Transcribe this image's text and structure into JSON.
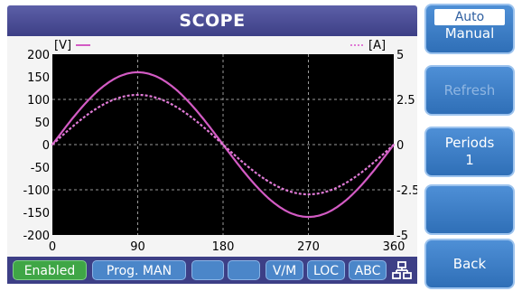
{
  "header": {
    "title": "SCOPE"
  },
  "plot": {
    "left_unit": "[V]",
    "right_unit": "[A]",
    "left_ticks": [
      "200",
      "150",
      "100",
      "50",
      "0",
      "-50",
      "-100",
      "-150",
      "-200"
    ],
    "right_ticks": [
      "5",
      "2.5",
      "0",
      "-2.5",
      "-5"
    ],
    "x_ticks": [
      "0",
      "90",
      "180",
      "270",
      "360"
    ]
  },
  "chart_data": {
    "type": "line",
    "x_unit": "deg",
    "xlim": [
      0,
      360
    ],
    "ylim_left": [
      -200,
      200
    ],
    "ylim_right": [
      -5,
      5
    ],
    "grid": true,
    "series": [
      {
        "axis": "left",
        "style": "solid",
        "color": "#d35bc4",
        "amplitude": 160,
        "x": [
          0,
          45,
          90,
          135,
          180,
          225,
          270,
          315,
          360
        ],
        "y": [
          0,
          113,
          160,
          113,
          0,
          -113,
          -160,
          -113,
          0
        ]
      },
      {
        "axis": "right",
        "style": "dashed",
        "color": "#e07ad6",
        "amplitude": 2.75,
        "x": [
          0,
          45,
          90,
          135,
          180,
          225,
          270,
          315,
          360
        ],
        "y": [
          0,
          1.94,
          2.75,
          1.94,
          0,
          -1.94,
          -2.75,
          -1.94,
          0
        ]
      }
    ]
  },
  "status": {
    "enabled": "Enabled",
    "prog": "Prog. MAN",
    "vm": "V/M",
    "loc": "LOC",
    "abc": "ABC"
  },
  "side": {
    "mode_auto": "Auto",
    "mode_manual": "Manual",
    "refresh": "Refresh",
    "periods_label": "Periods",
    "periods_value": "1",
    "back": "Back"
  },
  "colors": {
    "title_bar": "#3d3f86",
    "button": "#2f6fb7",
    "trace": "#d35bc4",
    "status_green": "#3fa646"
  }
}
